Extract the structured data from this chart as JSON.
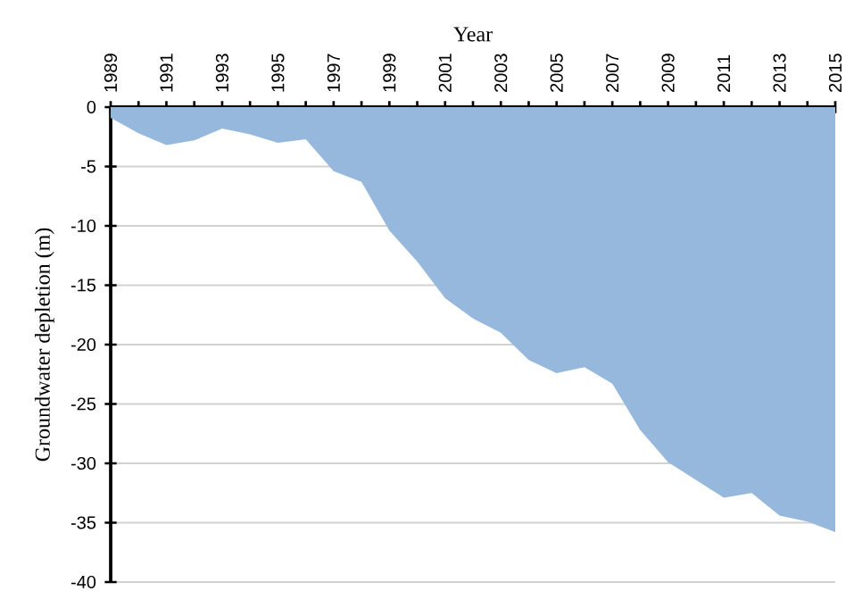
{
  "chart_data": {
    "type": "area",
    "xlabel": "Year",
    "ylabel": "Groundwater depletion (m)",
    "x": [
      1989,
      1990,
      1991,
      1992,
      1993,
      1994,
      1995,
      1996,
      1997,
      1998,
      1999,
      2000,
      2001,
      2002,
      2003,
      2004,
      2005,
      2006,
      2007,
      2008,
      2009,
      2010,
      2011,
      2012,
      2013,
      2014,
      2015
    ],
    "values": [
      -0.9,
      -2.2,
      -3.2,
      -2.8,
      -1.8,
      -2.3,
      -3.0,
      -2.7,
      -5.4,
      -6.3,
      -10.4,
      -13.0,
      -16.1,
      -17.8,
      -19.0,
      -21.3,
      -22.4,
      -21.9,
      -23.3,
      -27.2,
      -29.9,
      -31.4,
      -32.9,
      -32.5,
      -34.4,
      -34.9,
      -35.8
    ],
    "color": "#95b8dc",
    "xlim": [
      1989,
      2015
    ],
    "xticks": [
      1989,
      {
        "value": 1990,
        "label": null
      },
      1991,
      {
        "value": 1992,
        "label": null
      },
      1993,
      {
        "value": 1994,
        "label": null
      },
      1995,
      {
        "value": 1996,
        "label": null
      },
      1997,
      {
        "value": 1998,
        "label": null
      },
      1999,
      {
        "value": 2000,
        "label": null
      },
      2001,
      {
        "value": 2002,
        "label": null
      },
      2003,
      {
        "value": 2004,
        "label": null
      },
      2005,
      {
        "value": 2006,
        "label": null
      },
      2007,
      {
        "value": 2008,
        "label": null
      },
      2009,
      {
        "value": 2010,
        "label": null
      },
      2011,
      {
        "value": 2012,
        "label": null
      },
      2013,
      {
        "value": 2014,
        "label": null
      },
      2015
    ],
    "ylim": [
      -40,
      0
    ],
    "yticks": [
      -40,
      -35,
      -30,
      -25,
      -20,
      -15,
      -10,
      -5,
      0
    ],
    "grid": "y"
  }
}
